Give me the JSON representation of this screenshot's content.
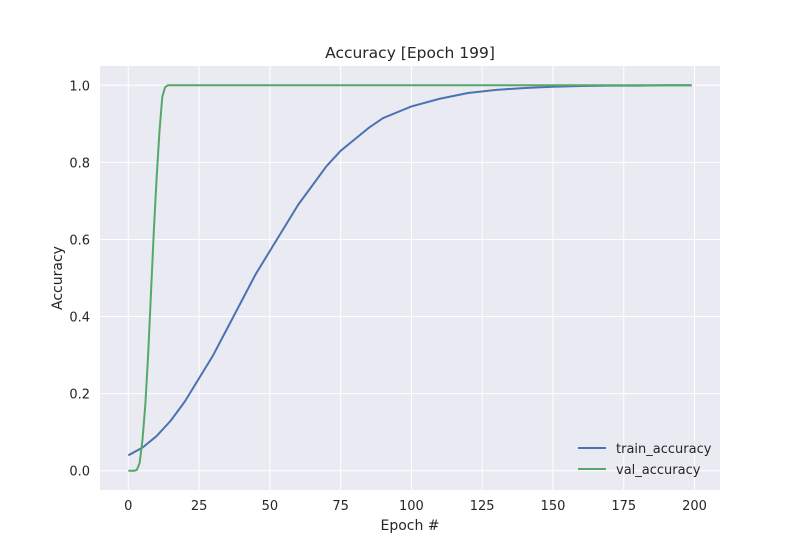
{
  "chart_data": {
    "type": "line",
    "title": "Accuracy [Epoch 199]",
    "xlabel": "Epoch #",
    "ylabel": "Accuracy",
    "xlim": [
      -10,
      209
    ],
    "ylim": [
      -0.05,
      1.05
    ],
    "xticks": [
      0,
      25,
      50,
      75,
      100,
      125,
      150,
      175,
      200
    ],
    "xtick_labels": [
      "0",
      "25",
      "50",
      "75",
      "100",
      "125",
      "150",
      "175",
      "200"
    ],
    "yticks": [
      0.0,
      0.2,
      0.4,
      0.6,
      0.8,
      1.0
    ],
    "ytick_labels": [
      "0.0",
      "0.2",
      "0.4",
      "0.6",
      "0.8",
      "1.0"
    ],
    "grid": true,
    "legend_position": "bottom-right",
    "series": [
      {
        "name": "train_accuracy",
        "color": "#4c72b0",
        "x": [
          0,
          5,
          10,
          15,
          20,
          25,
          30,
          35,
          40,
          45,
          50,
          55,
          60,
          65,
          70,
          75,
          80,
          85,
          90,
          95,
          100,
          110,
          120,
          130,
          140,
          150,
          160,
          170,
          180,
          190,
          199
        ],
        "y": [
          0.04,
          0.06,
          0.09,
          0.13,
          0.18,
          0.24,
          0.3,
          0.37,
          0.44,
          0.51,
          0.57,
          0.63,
          0.69,
          0.74,
          0.79,
          0.83,
          0.86,
          0.89,
          0.915,
          0.93,
          0.945,
          0.965,
          0.98,
          0.988,
          0.993,
          0.996,
          0.998,
          0.999,
          0.999,
          1.0,
          1.0
        ]
      },
      {
        "name": "val_accuracy",
        "color": "#55a868",
        "x": [
          0,
          2,
          3,
          4,
          5,
          6,
          7,
          8,
          9,
          10,
          11,
          12,
          13,
          14,
          15,
          20,
          50,
          100,
          150,
          199
        ],
        "y": [
          0.0,
          0.0,
          0.002,
          0.02,
          0.08,
          0.17,
          0.3,
          0.46,
          0.62,
          0.76,
          0.88,
          0.97,
          0.995,
          1.0,
          1.0,
          1.0,
          1.0,
          1.0,
          1.0,
          1.0
        ]
      }
    ]
  }
}
